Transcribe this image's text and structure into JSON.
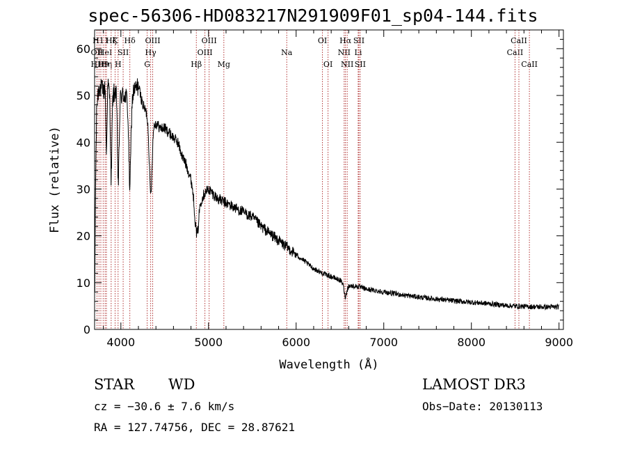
{
  "title": "spec-56306-HD083217N291909F01_sp04-144.fits",
  "chart_data": {
    "type": "line",
    "title": "spec-56306-HD083217N291909F01_sp04-144.fits",
    "xlabel": "Wavelength (Å)",
    "ylabel": "Flux (relative)",
    "xlim": [
      3700,
      9050
    ],
    "ylim": [
      0,
      64
    ],
    "xticks": [
      4000,
      5000,
      6000,
      7000,
      8000,
      9000
    ],
    "yticks": [
      0,
      10,
      20,
      30,
      40,
      50,
      60
    ],
    "grid": false,
    "line_color": "#000000",
    "marker_color": "#b03030",
    "continuum": [
      [
        3700,
        0
      ],
      [
        3710,
        30
      ],
      [
        3725,
        48
      ],
      [
        3750,
        52
      ],
      [
        3800,
        51
      ],
      [
        3850,
        52
      ],
      [
        3900,
        50
      ],
      [
        3950,
        51
      ],
      [
        4000,
        50
      ],
      [
        4050,
        50
      ],
      [
        4100,
        48
      ],
      [
        4150,
        51
      ],
      [
        4200,
        52
      ],
      [
        4250,
        48
      ],
      [
        4300,
        46
      ],
      [
        4350,
        45
      ],
      [
        4400,
        44
      ],
      [
        4450,
        43
      ],
      [
        4500,
        43
      ],
      [
        4550,
        42
      ],
      [
        4600,
        41
      ],
      [
        4650,
        40
      ],
      [
        4700,
        37
      ],
      [
        4750,
        35
      ],
      [
        4800,
        32
      ],
      [
        4850,
        28
      ],
      [
        4880,
        25
      ],
      [
        4900,
        27
      ],
      [
        4950,
        29
      ],
      [
        5000,
        30
      ],
      [
        5050,
        29
      ],
      [
        5100,
        28
      ],
      [
        5200,
        27
      ],
      [
        5300,
        26
      ],
      [
        5400,
        25
      ],
      [
        5500,
        24
      ],
      [
        5600,
        22
      ],
      [
        5700,
        20.5
      ],
      [
        5800,
        19
      ],
      [
        5900,
        17.5
      ],
      [
        6000,
        16
      ],
      [
        6100,
        14.5
      ],
      [
        6200,
        13
      ],
      [
        6300,
        12
      ],
      [
        6400,
        11.3
      ],
      [
        6500,
        10.5
      ],
      [
        6550,
        9.6
      ],
      [
        6600,
        9.3
      ],
      [
        6700,
        9.2
      ],
      [
        6800,
        8.6
      ],
      [
        6900,
        8.3
      ],
      [
        7000,
        8.0
      ],
      [
        7200,
        7.4
      ],
      [
        7400,
        6.9
      ],
      [
        7600,
        6.5
      ],
      [
        7800,
        6.1
      ],
      [
        8000,
        5.8
      ],
      [
        8200,
        5.5
      ],
      [
        8400,
        5.1
      ],
      [
        8600,
        4.9
      ],
      [
        8800,
        4.8
      ],
      [
        9000,
        4.8
      ]
    ],
    "absorption": [
      {
        "center": 3835,
        "depth": 14,
        "width": 6
      },
      {
        "center": 3889,
        "depth": 18,
        "width": 8
      },
      {
        "center": 3970,
        "depth": 19,
        "width": 10
      },
      {
        "center": 4102,
        "depth": 17,
        "width": 12
      },
      {
        "center": 4340,
        "depth": 16,
        "width": 16
      },
      {
        "center": 4861,
        "depth": 6,
        "width": 20
      },
      {
        "center": 6563,
        "depth": 2.5,
        "width": 14
      }
    ],
    "markers": [
      {
        "wavelength": 3727,
        "label": "OII",
        "row": 2
      },
      {
        "wavelength": 3750,
        "label": "H10",
        "row": 3
      },
      {
        "wavelength": 3771,
        "label": "H11",
        "row": 1
      },
      {
        "wavelength": 3798,
        "label": "H9",
        "row": 3
      },
      {
        "wavelength": 3820,
        "label": "HeI",
        "row": 2
      },
      {
        "wavelength": 3835,
        "label": "Hη",
        "row": 3
      },
      {
        "wavelength": 3889,
        "label": "Hζ",
        "row": 1
      },
      {
        "wavelength": 3934,
        "label": "K",
        "row": 1
      },
      {
        "wavelength": 3968,
        "label": "H",
        "row": 3
      },
      {
        "wavelength": 4026,
        "label": "SII",
        "row": 2
      },
      {
        "wavelength": 4102,
        "label": "Hδ",
        "row": 1
      },
      {
        "wavelength": 4300,
        "label": "G",
        "row": 3
      },
      {
        "wavelength": 4340,
        "label": "Hγ",
        "row": 2
      },
      {
        "wavelength": 4363,
        "label": "OIII",
        "row": 1
      },
      {
        "wavelength": 4861,
        "label": "Hβ",
        "row": 3
      },
      {
        "wavelength": 4959,
        "label": "OIII",
        "row": 2
      },
      {
        "wavelength": 5007,
        "label": "OIII",
        "row": 1
      },
      {
        "wavelength": 5175,
        "label": "Mg",
        "row": 3
      },
      {
        "wavelength": 5893,
        "label": "Na",
        "row": 2
      },
      {
        "wavelength": 6300,
        "label": "OI",
        "row": 1
      },
      {
        "wavelength": 6364,
        "label": "OI",
        "row": 3
      },
      {
        "wavelength": 6548,
        "label": "NII",
        "row": 2
      },
      {
        "wavelength": 6563,
        "label": "Hα",
        "row": 1
      },
      {
        "wavelength": 6583,
        "label": "NII",
        "row": 3
      },
      {
        "wavelength": 6708,
        "label": "Li",
        "row": 2
      },
      {
        "wavelength": 6716,
        "label": "SII",
        "row": 1
      },
      {
        "wavelength": 6731,
        "label": "SII",
        "row": 3
      },
      {
        "wavelength": 8498,
        "label": "CaII",
        "row": 2
      },
      {
        "wavelength": 8542,
        "label": "CaII",
        "row": 1
      },
      {
        "wavelength": 8662,
        "label": "CaII",
        "row": 3
      }
    ]
  },
  "info": {
    "class": "STAR",
    "subclass": "WD",
    "survey": "LAMOST DR3",
    "cz": "cz = −30.6 ± 7.6 km/s",
    "obs_date": "Obs−Date: 20130113",
    "coords": "RA = 127.74756, DEC =  28.87621"
  }
}
